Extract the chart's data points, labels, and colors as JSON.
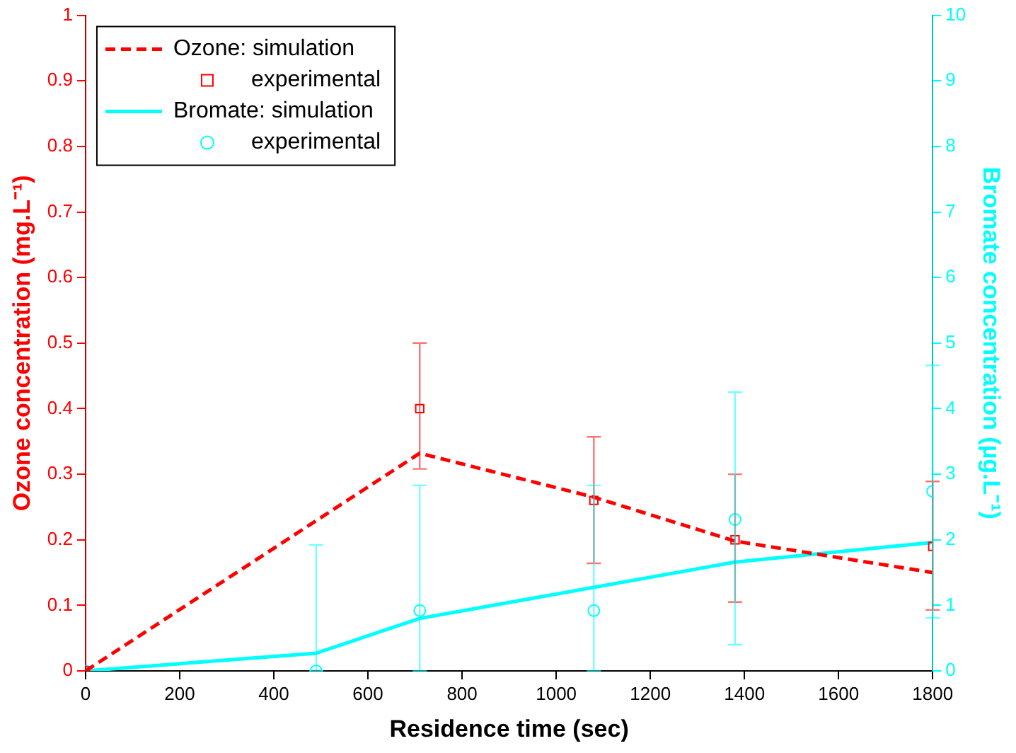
{
  "chart_data": {
    "type": "line",
    "xlabel": "Residence time (sec)",
    "ylabel": "Ozone concentration (mg.L⁻¹)",
    "y2label": "Bromate concentration (µg.L⁻¹)",
    "xlim": [
      0,
      1800
    ],
    "xticks": [
      0,
      200,
      400,
      600,
      800,
      1000,
      1200,
      1400,
      1600,
      1800
    ],
    "ylim": [
      0,
      1
    ],
    "yticks": [
      0,
      0.1,
      0.2,
      0.3,
      0.4,
      0.5,
      0.6,
      0.7,
      0.8,
      0.9,
      1
    ],
    "y2lim": [
      0,
      10
    ],
    "y2ticks": [
      0,
      1,
      2,
      3,
      4,
      5,
      6,
      7,
      8,
      9,
      10
    ],
    "grid": false,
    "legend": "top left",
    "series": [
      {
        "name": "Ozone: simulation",
        "type": "line",
        "color": "#ff0000",
        "line_style": "dashed",
        "marker": "none",
        "x": [
          0,
          710,
          1080,
          1380,
          1800
        ],
        "values": [
          0,
          0.332,
          0.265,
          0.198,
          0.15
        ]
      },
      {
        "name": "experimental",
        "type": "scatter",
        "color": "#ff0000",
        "marker": "square",
        "x": [
          0,
          710,
          1080,
          1380,
          1800
        ],
        "values": [
          0,
          0.4,
          0.26,
          0.2,
          0.19
        ],
        "errors": [
          null,
          [
            0.308,
            0.5
          ],
          [
            0.164,
            0.357
          ],
          [
            0.105,
            0.3
          ],
          [
            0.093,
            0.289
          ]
        ]
      },
      {
        "name": "Bromate: simulation",
        "type": "line",
        "axis": "y2",
        "color": "#00ffff",
        "line_style": "solid",
        "marker": "none",
        "x": [
          0,
          490,
          710,
          1380,
          1800
        ],
        "values": [
          0,
          0.27,
          0.8,
          1.66,
          1.96
        ]
      },
      {
        "name": "experimental",
        "type": "scatter",
        "axis": "y2",
        "color": "#00ffff",
        "marker": "circle",
        "x": [
          0,
          490,
          710,
          1080,
          1380,
          1800
        ],
        "values": [
          0,
          0,
          0.92,
          0.92,
          2.31,
          2.74
        ],
        "errors": [
          null,
          [
            0,
            1.92
          ],
          [
            0,
            2.83
          ],
          [
            0,
            2.83
          ],
          [
            0.4,
            4.25
          ],
          [
            0.81,
            4.66
          ]
        ]
      }
    ]
  }
}
